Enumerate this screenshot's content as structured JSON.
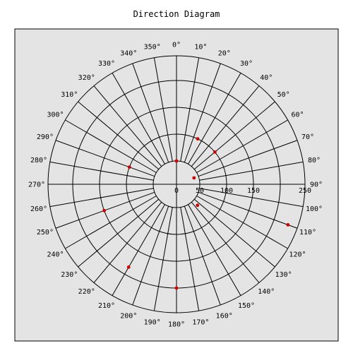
{
  "chart_data": {
    "type": "scatter",
    "coordinate_system": "polar",
    "title": "Direction Diagram",
    "angle_convention": "clockwise from north (0° at top)",
    "angle_labels": [
      "0°",
      "10°",
      "20°",
      "30°",
      "40°",
      "50°",
      "60°",
      "70°",
      "80°",
      "90°",
      "100°",
      "110°",
      "120°",
      "130°",
      "140°",
      "150°",
      "160°",
      "170°",
      "180°",
      "190°",
      "200°",
      "210°",
      "220°",
      "230°",
      "240°",
      "250°",
      "260°",
      "270°",
      "280°",
      "290°",
      "300°",
      "310°",
      "320°",
      "330°",
      "340°",
      "350°"
    ],
    "radial_ticks": [
      0,
      50,
      100,
      150,
      200,
      250
    ],
    "radial_range": [
      0,
      250
    ],
    "radial_tick_labels": [
      "0",
      "50",
      "100",
      "150",
      "250"
    ],
    "series": [
      {
        "points": [
          {
            "angle": 0,
            "r": 50
          },
          {
            "angle": 25,
            "r": 100
          },
          {
            "angle": 50,
            "r": 100
          },
          {
            "angle": 70,
            "r": 40
          },
          {
            "angle": 110,
            "r": 230
          },
          {
            "angle": 135,
            "r": 62
          },
          {
            "angle": 180,
            "r": 200
          },
          {
            "angle": 210,
            "r": 185
          },
          {
            "angle": 250,
            "r": 150
          },
          {
            "angle": 290,
            "r": 100
          }
        ]
      }
    ],
    "grid": true,
    "colors": {
      "background": "#e4e4e4",
      "point": "#cc0000",
      "grid": "#000000"
    }
  }
}
